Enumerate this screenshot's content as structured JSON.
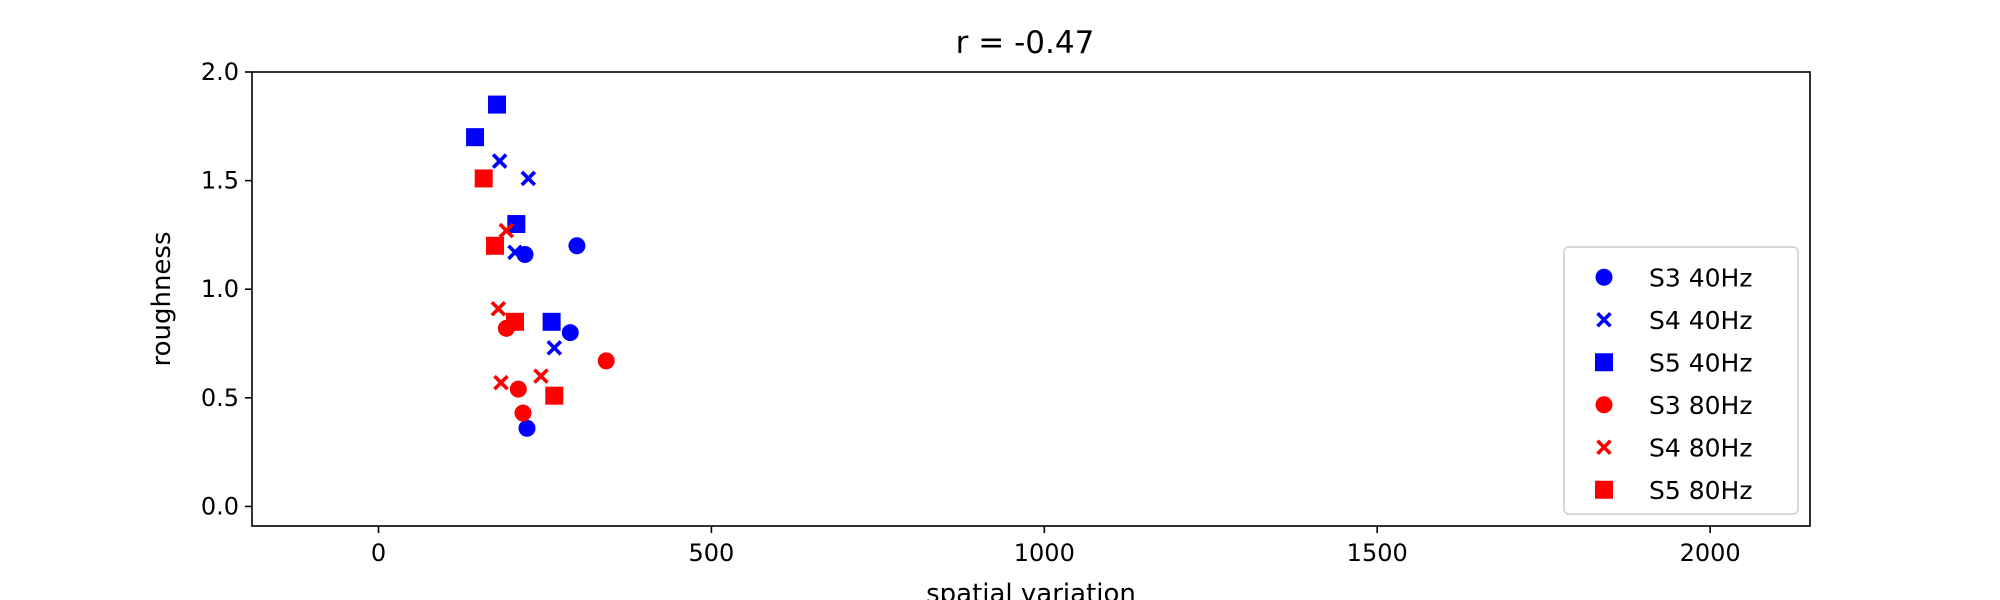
{
  "chart_data": {
    "type": "scatter",
    "title": "r = -0.47",
    "xlabel": "spatial variation",
    "ylabel": "roughness",
    "xlim": [
      -190,
      2150
    ],
    "ylim": [
      -0.09,
      2.0
    ],
    "xticks": [
      0,
      500,
      1000,
      1500,
      2000
    ],
    "yticks": [
      0.0,
      0.5,
      1.0,
      1.5,
      2.0
    ],
    "xtick_labels": [
      "0",
      "500",
      "1000",
      "1500",
      "2000"
    ],
    "ytick_labels": [
      "0.0",
      "0.5",
      "1.0",
      "1.5",
      "2.0"
    ],
    "grid": false,
    "legend_position": "lower right",
    "series": [
      {
        "name": "S3 40Hz",
        "marker": "circle",
        "color": "#0000ff",
        "points": [
          [
            220,
            1.16
          ],
          [
            298,
            1.2
          ],
          [
            288,
            0.8
          ],
          [
            223,
            0.36
          ]
        ]
      },
      {
        "name": "S4 40Hz",
        "marker": "x",
        "color": "#0000ff",
        "points": [
          [
            182,
            1.59
          ],
          [
            225,
            1.51
          ],
          [
            205,
            1.17
          ],
          [
            264,
            0.73
          ]
        ]
      },
      {
        "name": "S5 40Hz",
        "marker": "square",
        "color": "#0000ff",
        "points": [
          [
            145,
            1.7
          ],
          [
            178,
            1.85
          ],
          [
            207,
            1.3
          ],
          [
            260,
            0.85
          ]
        ]
      },
      {
        "name": "S3 80Hz",
        "marker": "circle",
        "color": "#ff0000",
        "points": [
          [
            192,
            0.82
          ],
          [
            210,
            0.54
          ],
          [
            217,
            0.43
          ],
          [
            342,
            0.67
          ]
        ]
      },
      {
        "name": "S4 80Hz",
        "marker": "x",
        "color": "#ff0000",
        "points": [
          [
            192,
            1.27
          ],
          [
            180,
            0.91
          ],
          [
            184,
            0.57
          ],
          [
            244,
            0.6
          ]
        ]
      },
      {
        "name": "S5 80Hz",
        "marker": "square",
        "color": "#ff0000",
        "points": [
          [
            158,
            1.51
          ],
          [
            175,
            1.2
          ],
          [
            205,
            0.85
          ],
          [
            264,
            0.51
          ]
        ]
      }
    ]
  }
}
